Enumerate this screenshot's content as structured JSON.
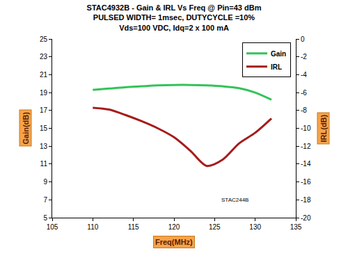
{
  "chart_data": {
    "type": "line",
    "title": "STAC4932B - Gain & IRL Vs Freq @ Pin=43 dBm\nPULSED WIDTH= 1msec, DUTYCYCLE =10%\nVds=100 VDC, Idq=2 x 100 mA",
    "x_label": "Freq(MHz)",
    "y_label": "Gain(dB)",
    "y2_label": "IRL(dB)",
    "x": [
      110,
      112,
      114,
      116,
      118,
      120,
      122,
      124,
      126,
      128,
      130,
      132
    ],
    "series": [
      {
        "name": "Gain",
        "color": "#33c35a",
        "values": [
          19.3,
          19.45,
          19.6,
          19.7,
          19.8,
          19.85,
          19.85,
          19.8,
          19.7,
          19.5,
          19.0,
          18.2
        ]
      },
      {
        "name": "IRL",
        "color": "#a51c1c",
        "axis": "y2",
        "values": [
          -7.7,
          -7.9,
          -8.5,
          -9.2,
          -10.0,
          -11.0,
          -12.5,
          -14.2,
          -13.5,
          -11.7,
          -10.5,
          -8.9
        ]
      }
    ],
    "xlim": [
      105,
      135
    ],
    "xticks": [
      105,
      110,
      115,
      120,
      125,
      130,
      135
    ],
    "ylim": [
      5,
      25
    ],
    "yticks": [
      5,
      7,
      9,
      11,
      13,
      15,
      17,
      19,
      21,
      23,
      25
    ],
    "y2lim": [
      -20,
      0
    ],
    "y2ticks": [
      -20,
      -18,
      -16,
      -14,
      -12,
      -10,
      -8,
      -6,
      -4,
      -2,
      0
    ],
    "grid": false,
    "legend": "top right",
    "annotations": [
      {
        "text": "STAC244B",
        "x": 127.5,
        "y": 7
      }
    ]
  }
}
